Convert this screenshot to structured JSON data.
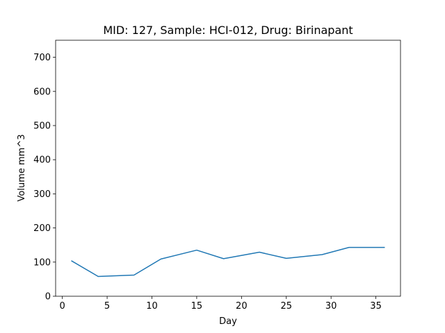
{
  "chart_data": {
    "type": "line",
    "title": "MID: 127, Sample: HCI-012, Drug: Birinapant",
    "xlabel": "Day",
    "ylabel": "Volume mm^3",
    "xlim": [
      -0.75,
      37.75
    ],
    "ylim": [
      0,
      750
    ],
    "xticks": [
      0,
      5,
      10,
      15,
      20,
      25,
      30,
      35
    ],
    "yticks": [
      0,
      100,
      200,
      300,
      400,
      500,
      600,
      700
    ],
    "grid": false,
    "series_color": "#1f77b4",
    "x": [
      1,
      4,
      8,
      11,
      15,
      18,
      22,
      25,
      29,
      32,
      36
    ],
    "values": [
      104,
      58,
      62,
      109,
      135,
      110,
      129,
      111,
      122,
      143,
      143
    ]
  }
}
